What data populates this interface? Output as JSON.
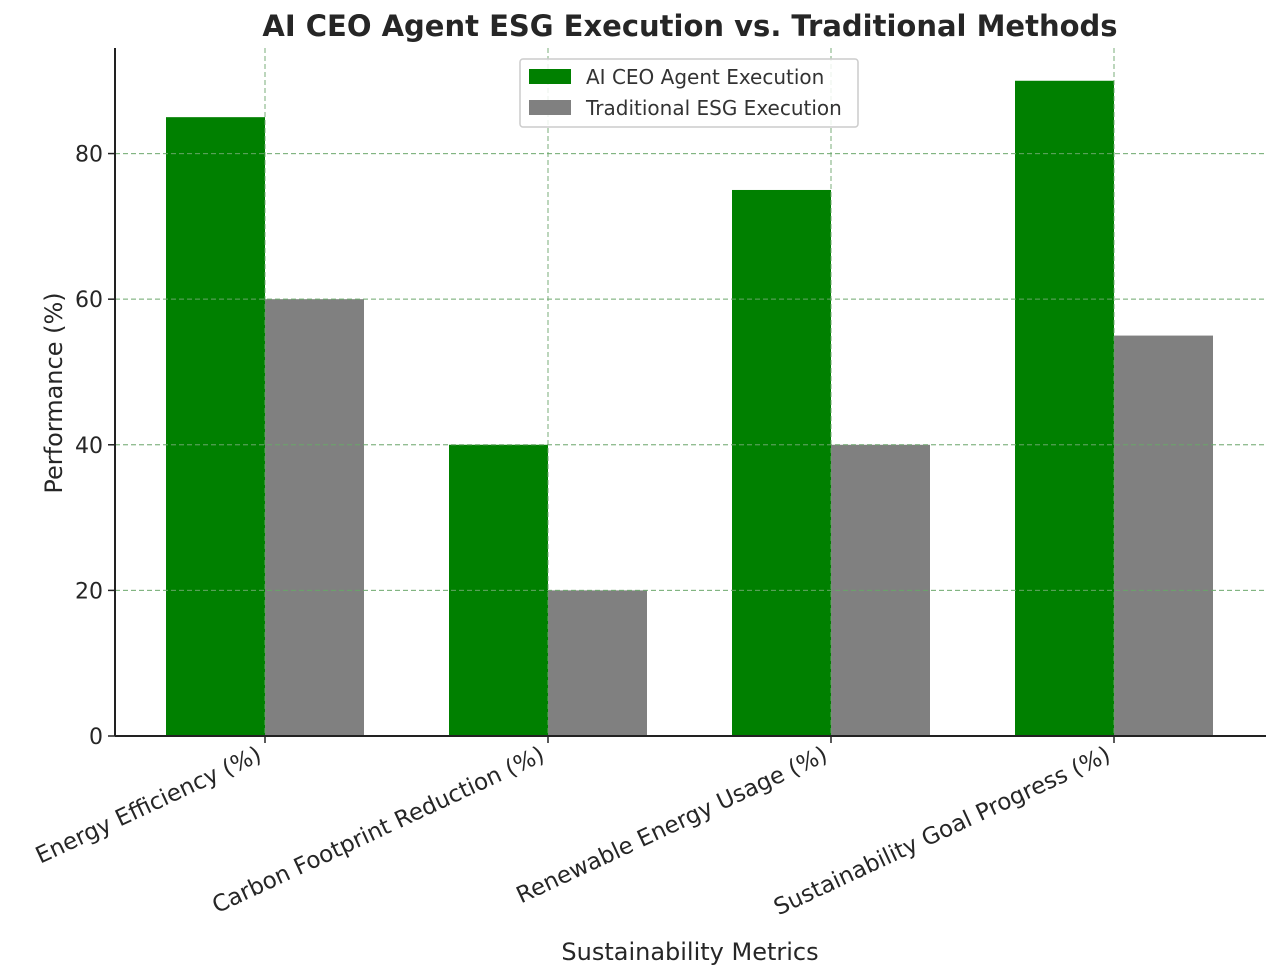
{
  "chart_data": {
    "type": "bar",
    "title": "AI CEO Agent ESG Execution vs. Traditional Methods",
    "xlabel": "Sustainability Metrics",
    "ylabel": "Performance (%)",
    "categories": [
      "Energy Efficiency (%)",
      "Carbon Footprint Reduction (%)",
      "Renewable Energy Usage (%)",
      "Sustainability Goal Progress (%)"
    ],
    "series": [
      {
        "name": "AI CEO Agent Execution",
        "values": [
          85,
          40,
          75,
          90
        ],
        "color": "#008000"
      },
      {
        "name": "Traditional ESG Execution",
        "values": [
          60,
          20,
          40,
          55
        ],
        "color": "#808080"
      }
    ],
    "ylim": [
      0,
      94.5
    ],
    "yticks": [
      0,
      20,
      40,
      60,
      80
    ],
    "grid": true,
    "grid_color": "#6aa66a",
    "legend_position": "top-center"
  }
}
